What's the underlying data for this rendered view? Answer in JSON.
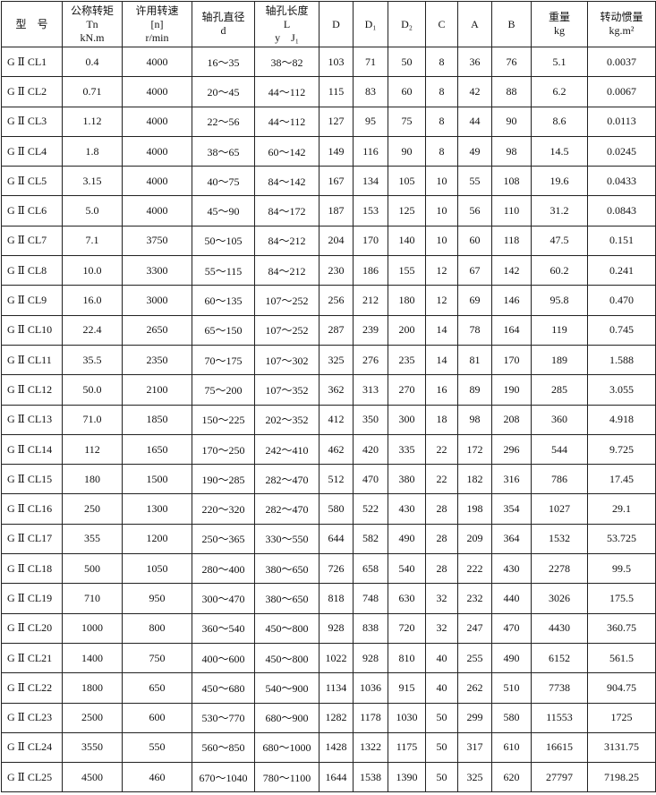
{
  "table": {
    "header": [
      [
        "型　号"
      ],
      [
        "公称转矩",
        "Tn",
        "kN.m"
      ],
      [
        "许用转速",
        "[n]",
        "r/min"
      ],
      [
        "轴孔直径",
        "d"
      ],
      [
        "轴孔长度",
        "L",
        "y　J₁"
      ],
      [
        "D"
      ],
      [
        "D₁"
      ],
      [
        "D₂"
      ],
      [
        "C"
      ],
      [
        "A"
      ],
      [
        "B"
      ],
      [
        "重量",
        "kg"
      ],
      [
        "转动惯量",
        "kg.m²"
      ]
    ],
    "rows": [
      [
        "G Ⅱ CL1",
        "0.4",
        "4000",
        "16～35",
        "38～82",
        "103",
        "71",
        "50",
        "8",
        "36",
        "76",
        "5.1",
        "0.0037"
      ],
      [
        "G Ⅱ CL2",
        "0.71",
        "4000",
        "20～45",
        "44～112",
        "115",
        "83",
        "60",
        "8",
        "42",
        "88",
        "6.2",
        "0.0067"
      ],
      [
        "G Ⅱ CL3",
        "1.12",
        "4000",
        "22～56",
        "44～112",
        "127",
        "95",
        "75",
        "8",
        "44",
        "90",
        "8.6",
        "0.0113"
      ],
      [
        "G Ⅱ CL4",
        "1.8",
        "4000",
        "38～65",
        "60～142",
        "149",
        "116",
        "90",
        "8",
        "49",
        "98",
        "14.5",
        "0.0245"
      ],
      [
        "G Ⅱ CL5",
        "3.15",
        "4000",
        "40～75",
        "84～142",
        "167",
        "134",
        "105",
        "10",
        "55",
        "108",
        "19.6",
        "0.0433"
      ],
      [
        "G Ⅱ CL6",
        "5.0",
        "4000",
        "45～90",
        "84～172",
        "187",
        "153",
        "125",
        "10",
        "56",
        "110",
        "31.2",
        "0.0843"
      ],
      [
        "G Ⅱ CL7",
        "7.1",
        "3750",
        "50～105",
        "84～212",
        "204",
        "170",
        "140",
        "10",
        "60",
        "118",
        "47.5",
        "0.151"
      ],
      [
        "G Ⅱ CL8",
        "10.0",
        "3300",
        "55～115",
        "84～212",
        "230",
        "186",
        "155",
        "12",
        "67",
        "142",
        "60.2",
        "0.241"
      ],
      [
        "G Ⅱ CL9",
        "16.0",
        "3000",
        "60～135",
        "107～252",
        "256",
        "212",
        "180",
        "12",
        "69",
        "146",
        "95.8",
        "0.470"
      ],
      [
        "G Ⅱ CL10",
        "22.4",
        "2650",
        "65～150",
        "107～252",
        "287",
        "239",
        "200",
        "14",
        "78",
        "164",
        "119",
        "0.745"
      ],
      [
        "G Ⅱ CL11",
        "35.5",
        "2350",
        "70～175",
        "107～302",
        "325",
        "276",
        "235",
        "14",
        "81",
        "170",
        "189",
        "1.588"
      ],
      [
        "G Ⅱ CL12",
        "50.0",
        "2100",
        "75～200",
        "107～352",
        "362",
        "313",
        "270",
        "16",
        "89",
        "190",
        "285",
        "3.055"
      ],
      [
        "G Ⅱ CL13",
        "71.0",
        "1850",
        "150～225",
        "202～352",
        "412",
        "350",
        "300",
        "18",
        "98",
        "208",
        "360",
        "4.918"
      ],
      [
        "G Ⅱ CL14",
        "112",
        "1650",
        "170～250",
        "242～410",
        "462",
        "420",
        "335",
        "22",
        "172",
        "296",
        "544",
        "9.725"
      ],
      [
        "G Ⅱ CL15",
        "180",
        "1500",
        "190～285",
        "282～470",
        "512",
        "470",
        "380",
        "22",
        "182",
        "316",
        "786",
        "17.45"
      ],
      [
        "G Ⅱ CL16",
        "250",
        "1300",
        "220～320",
        "282～470",
        "580",
        "522",
        "430",
        "28",
        "198",
        "354",
        "1027",
        "29.1"
      ],
      [
        "G Ⅱ CL17",
        "355",
        "1200",
        "250～365",
        "330～550",
        "644",
        "582",
        "490",
        "28",
        "209",
        "364",
        "1532",
        "53.725"
      ],
      [
        "G Ⅱ CL18",
        "500",
        "1050",
        "280～400",
        "380～650",
        "726",
        "658",
        "540",
        "28",
        "222",
        "430",
        "2278",
        "99.5"
      ],
      [
        "G Ⅱ CL19",
        "710",
        "950",
        "300～470",
        "380～650",
        "818",
        "748",
        "630",
        "32",
        "232",
        "440",
        "3026",
        "175.5"
      ],
      [
        "G Ⅱ CL20",
        "1000",
        "800",
        "360～540",
        "450～800",
        "928",
        "838",
        "720",
        "32",
        "247",
        "470",
        "4430",
        "360.75"
      ],
      [
        "G Ⅱ CL21",
        "1400",
        "750",
        "400～600",
        "450～800",
        "1022",
        "928",
        "810",
        "40",
        "255",
        "490",
        "6152",
        "561.5"
      ],
      [
        "G Ⅱ CL22",
        "1800",
        "650",
        "450～680",
        "540～900",
        "1134",
        "1036",
        "915",
        "40",
        "262",
        "510",
        "7738",
        "904.75"
      ],
      [
        "G Ⅱ CL23",
        "2500",
        "600",
        "530～770",
        "680～900",
        "1282",
        "1178",
        "1030",
        "50",
        "299",
        "580",
        "11553",
        "1725"
      ],
      [
        "G Ⅱ CL24",
        "3550",
        "550",
        "560～850",
        "680～1000",
        "1428",
        "1322",
        "1175",
        "50",
        "317",
        "610",
        "16615",
        "3131.75"
      ],
      [
        "G Ⅱ CL25",
        "4500",
        "460",
        "670～1040",
        "780～1100",
        "1644",
        "1538",
        "1390",
        "50",
        "325",
        "620",
        "27797",
        "7198.25"
      ]
    ]
  }
}
